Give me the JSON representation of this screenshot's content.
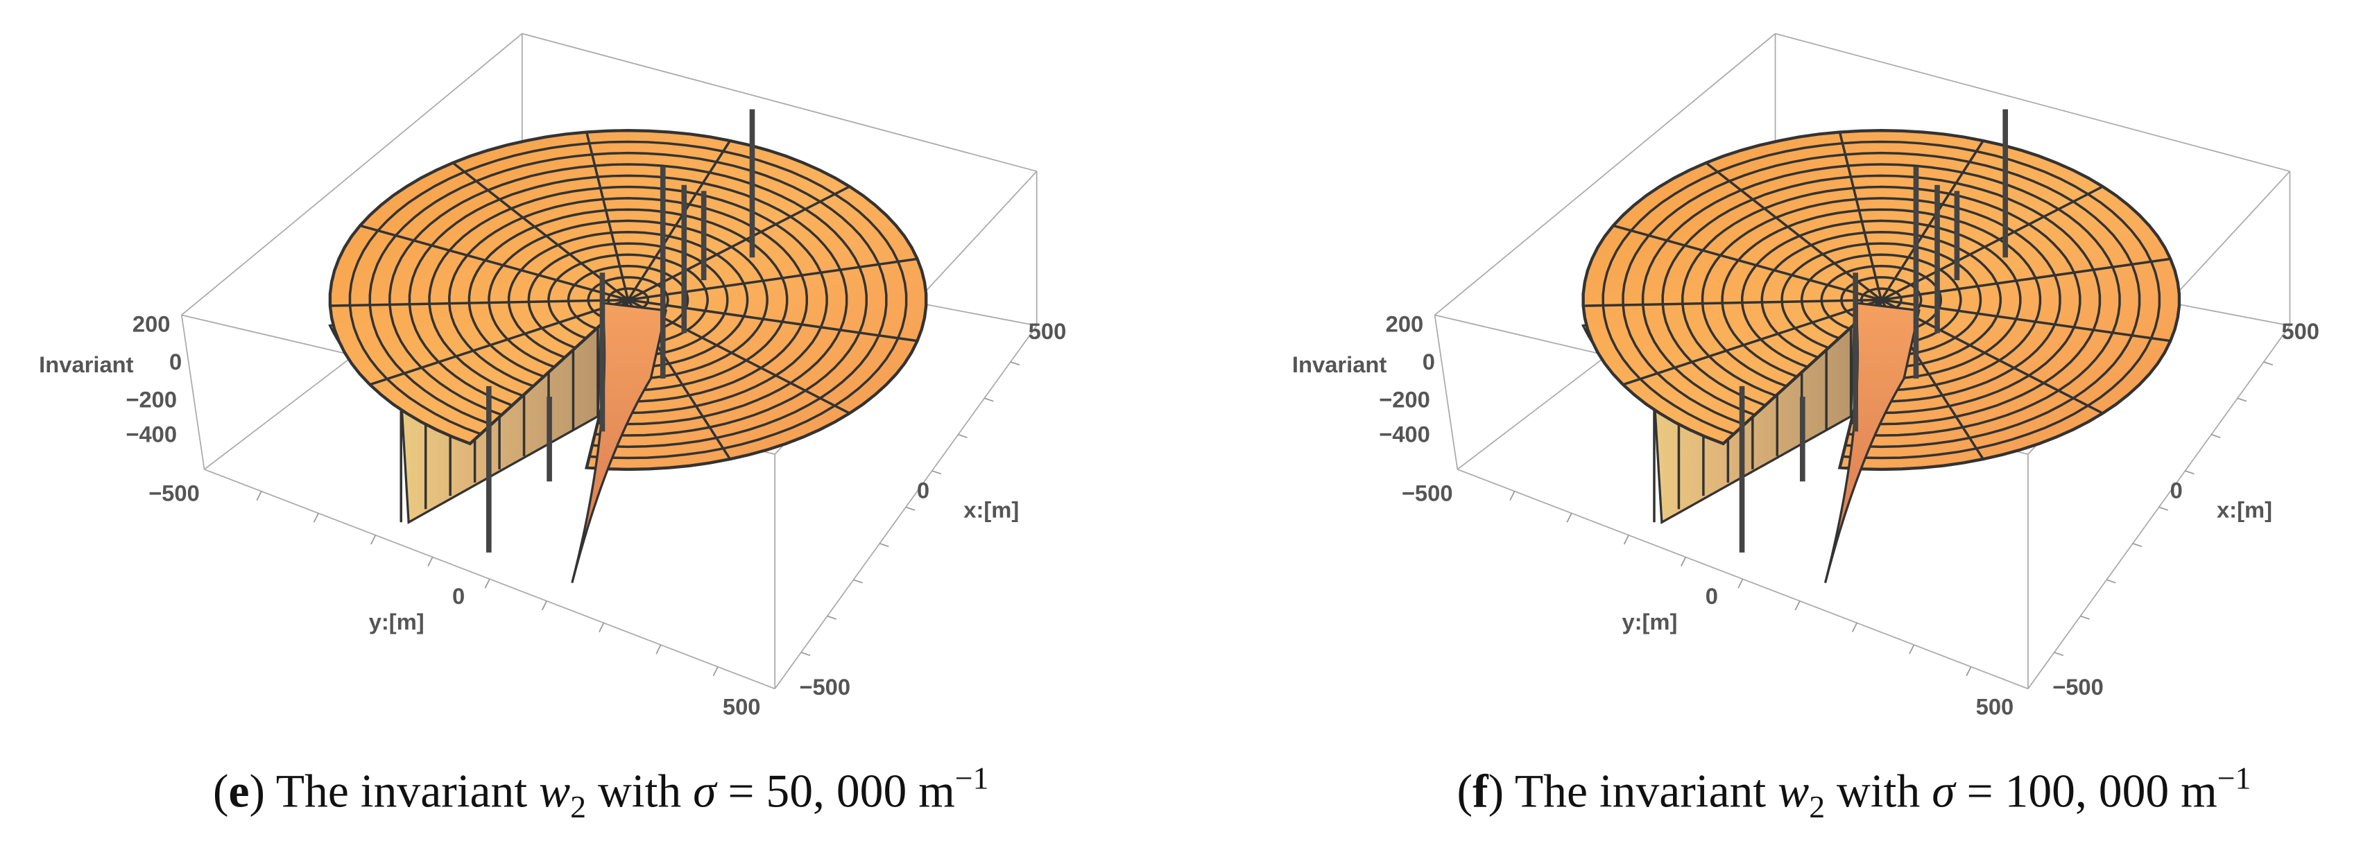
{
  "panels": [
    {
      "z_axis": {
        "label": "Invariant",
        "ticks": [
          {
            "value": 200,
            "label": "200"
          },
          {
            "value": 0,
            "label": "0"
          },
          {
            "value": -200,
            "label": "−200"
          },
          {
            "value": -400,
            "label": "−400"
          },
          {
            "value": -500,
            "label": "−500"
          }
        ]
      },
      "y_axis": {
        "label": "y:[m]",
        "ticks": [
          {
            "value": 0,
            "label": "0"
          },
          {
            "value": 500,
            "label": "500"
          }
        ]
      },
      "x_axis": {
        "label": "x:[m]",
        "ticks": [
          {
            "value": 500,
            "label": "500"
          },
          {
            "value": 0,
            "label": "0"
          },
          {
            "value": -500,
            "label": "−500"
          }
        ]
      },
      "caption": [
        {
          "text": "(",
          "style": "normal"
        },
        {
          "text": "e",
          "style": "bold"
        },
        {
          "text": ") The invariant ",
          "style": "normal"
        },
        {
          "text": "w",
          "style": "italic"
        },
        {
          "text": "2",
          "style": "sub"
        },
        {
          "text": " with ",
          "style": "normal"
        },
        {
          "text": "σ",
          "style": "italic"
        },
        {
          "text": " = 50, 000 m",
          "style": "normal"
        },
        {
          "text": "−1",
          "style": "sup"
        }
      ]
    },
    {
      "z_axis": {
        "label": "Invariant",
        "ticks": [
          {
            "value": 200,
            "label": "200"
          },
          {
            "value": 0,
            "label": "0"
          },
          {
            "value": -200,
            "label": "−200"
          },
          {
            "value": -400,
            "label": "−400"
          },
          {
            "value": -500,
            "label": "−500"
          }
        ]
      },
      "y_axis": {
        "label": "y:[m]",
        "ticks": [
          {
            "value": 0,
            "label": "0"
          },
          {
            "value": 500,
            "label": "500"
          }
        ]
      },
      "x_axis": {
        "label": "x:[m]",
        "ticks": [
          {
            "value": 500,
            "label": "500"
          },
          {
            "value": 0,
            "label": "0"
          },
          {
            "value": -500,
            "label": "−500"
          }
        ]
      },
      "caption": [
        {
          "text": "(",
          "style": "normal"
        },
        {
          "text": "f",
          "style": "bold"
        },
        {
          "text": ") The invariant ",
          "style": "normal"
        },
        {
          "text": "w",
          "style": "italic"
        },
        {
          "text": "2",
          "style": "sub"
        },
        {
          "text": " with ",
          "style": "normal"
        },
        {
          "text": "σ",
          "style": "italic"
        },
        {
          "text": " = 100, 000 m",
          "style": "normal"
        },
        {
          "text": "−1",
          "style": "sup"
        }
      ]
    }
  ]
}
